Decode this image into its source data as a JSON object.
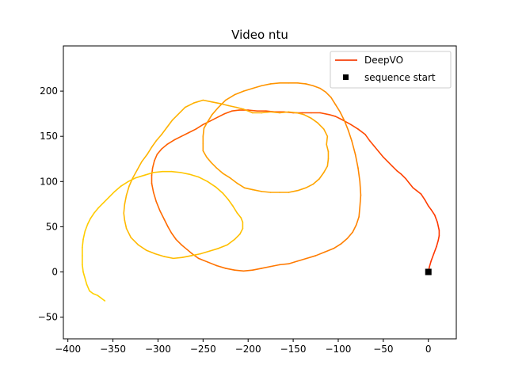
{
  "chart_data": {
    "type": "line",
    "title": "Video ntu",
    "xlabel": "",
    "ylabel": "",
    "xlim": [
      -405,
      31
    ],
    "ylim": [
      -74,
      250
    ],
    "xticks": [
      -400,
      -350,
      -300,
      -250,
      -200,
      -150,
      -100,
      -50,
      0
    ],
    "yticks": [
      -50,
      0,
      50,
      100,
      150,
      200
    ],
    "grid": false,
    "legend": {
      "position": "top-right",
      "entries": [
        "DeepVO",
        "sequence start"
      ]
    },
    "colors": {
      "path_start": "#ff3200",
      "path_mid": "#ff9b00",
      "path_end": "#ffd200",
      "legend_line": "#f4400b",
      "marker": "#000000"
    },
    "series": [
      {
        "name": "DeepVO",
        "points": [
          [
            0,
            0
          ],
          [
            1,
            5
          ],
          [
            3,
            12
          ],
          [
            6,
            20
          ],
          [
            9,
            28
          ],
          [
            11,
            35
          ],
          [
            12,
            40
          ],
          [
            12,
            46
          ],
          [
            10,
            55
          ],
          [
            7,
            63
          ],
          [
            3,
            69
          ],
          [
            0,
            73
          ],
          [
            -4,
            80
          ],
          [
            -8,
            86
          ],
          [
            -13,
            90
          ],
          [
            -17,
            93
          ],
          [
            -21,
            98
          ],
          [
            -25,
            103
          ],
          [
            -30,
            108
          ],
          [
            -35,
            112
          ],
          [
            -40,
            117
          ],
          [
            -45,
            122
          ],
          [
            -50,
            127
          ],
          [
            -55,
            133
          ],
          [
            -60,
            139
          ],
          [
            -65,
            145
          ],
          [
            -70,
            152
          ],
          [
            -78,
            158
          ],
          [
            -86,
            163
          ],
          [
            -95,
            168
          ],
          [
            -103,
            172
          ],
          [
            -110,
            174
          ],
          [
            -120,
            176
          ],
          [
            -130,
            176
          ],
          [
            -140,
            176
          ],
          [
            -150,
            176
          ],
          [
            -160,
            177
          ],
          [
            -170,
            177
          ],
          [
            -180,
            178
          ],
          [
            -190,
            178
          ],
          [
            -200,
            179
          ],
          [
            -210,
            179
          ],
          [
            -218,
            178
          ],
          [
            -226,
            175
          ],
          [
            -234,
            171
          ],
          [
            -242,
            167
          ],
          [
            -250,
            163
          ],
          [
            -258,
            158
          ],
          [
            -266,
            154
          ],
          [
            -274,
            150
          ],
          [
            -282,
            146
          ],
          [
            -290,
            141
          ],
          [
            -296,
            136
          ],
          [
            -301,
            130
          ],
          [
            -304,
            123
          ],
          [
            -306,
            115
          ],
          [
            -307,
            107
          ],
          [
            -307,
            98
          ],
          [
            -305,
            88
          ],
          [
            -302,
            78
          ],
          [
            -298,
            68
          ],
          [
            -293,
            58
          ],
          [
            -289,
            50
          ],
          [
            -285,
            43
          ],
          [
            -280,
            36
          ],
          [
            -274,
            30
          ],
          [
            -268,
            25
          ],
          [
            -262,
            20
          ],
          [
            -255,
            15
          ],
          [
            -245,
            11
          ],
          [
            -235,
            7
          ],
          [
            -225,
            4
          ],
          [
            -215,
            2
          ],
          [
            -205,
            1
          ],
          [
            -195,
            2
          ],
          [
            -185,
            4
          ],
          [
            -175,
            6
          ],
          [
            -165,
            8
          ],
          [
            -155,
            9
          ],
          [
            -145,
            12
          ],
          [
            -135,
            15
          ],
          [
            -125,
            18
          ],
          [
            -115,
            22
          ],
          [
            -105,
            26
          ],
          [
            -97,
            31
          ],
          [
            -90,
            37
          ],
          [
            -84,
            44
          ],
          [
            -80,
            52
          ],
          [
            -77,
            61
          ],
          [
            -76,
            72
          ],
          [
            -75,
            85
          ],
          [
            -76,
            100
          ],
          [
            -78,
            115
          ],
          [
            -81,
            130
          ],
          [
            -85,
            145
          ],
          [
            -89,
            157
          ],
          [
            -93,
            167
          ],
          [
            -98,
            177
          ],
          [
            -103,
            185
          ],
          [
            -108,
            193
          ],
          [
            -114,
            199
          ],
          [
            -120,
            203
          ],
          [
            -128,
            206
          ],
          [
            -136,
            208
          ],
          [
            -145,
            209
          ],
          [
            -155,
            209
          ],
          [
            -165,
            209
          ],
          [
            -175,
            208
          ],
          [
            -185,
            206
          ],
          [
            -195,
            203
          ],
          [
            -205,
            200
          ],
          [
            -215,
            196
          ],
          [
            -225,
            190
          ],
          [
            -233,
            182
          ],
          [
            -240,
            174
          ],
          [
            -245,
            166
          ],
          [
            -249,
            159
          ],
          [
            -250,
            150
          ],
          [
            -250,
            142
          ],
          [
            -250,
            134
          ],
          [
            -246,
            127
          ],
          [
            -241,
            121
          ],
          [
            -235,
            115
          ],
          [
            -228,
            109
          ],
          [
            -220,
            104
          ],
          [
            -212,
            98
          ],
          [
            -204,
            93
          ],
          [
            -195,
            91
          ],
          [
            -185,
            89
          ],
          [
            -175,
            88
          ],
          [
            -165,
            88
          ],
          [
            -155,
            88
          ],
          [
            -145,
            90
          ],
          [
            -136,
            93
          ],
          [
            -128,
            97
          ],
          [
            -121,
            103
          ],
          [
            -116,
            110
          ],
          [
            -112,
            117
          ],
          [
            -111,
            125
          ],
          [
            -111,
            133
          ],
          [
            -113,
            141
          ],
          [
            -112,
            150
          ],
          [
            -116,
            158
          ],
          [
            -123,
            165
          ],
          [
            -130,
            170
          ],
          [
            -138,
            174
          ],
          [
            -146,
            176
          ],
          [
            -155,
            177
          ],
          [
            -165,
            176
          ],
          [
            -175,
            177
          ],
          [
            -185,
            176
          ],
          [
            -195,
            176
          ],
          [
            -205,
            180
          ],
          [
            -213,
            182
          ],
          [
            -222,
            184
          ],
          [
            -230,
            186
          ],
          [
            -240,
            188
          ],
          [
            -250,
            190
          ],
          [
            -260,
            187
          ],
          [
            -270,
            182
          ],
          [
            -278,
            174
          ],
          [
            -284,
            168
          ],
          [
            -290,
            160
          ],
          [
            -296,
            152
          ],
          [
            -302,
            145
          ],
          [
            -307,
            138
          ],
          [
            -312,
            130
          ],
          [
            -318,
            122
          ],
          [
            -323,
            113
          ],
          [
            -328,
            104
          ],
          [
            -332,
            95
          ],
          [
            -335,
            85
          ],
          [
            -337,
            75
          ],
          [
            -338,
            65
          ],
          [
            -337,
            57
          ],
          [
            -335,
            48
          ],
          [
            -330,
            38
          ],
          [
            -322,
            30
          ],
          [
            -313,
            24
          ],
          [
            -303,
            20
          ],
          [
            -293,
            17
          ],
          [
            -283,
            15
          ],
          [
            -273,
            16
          ],
          [
            -263,
            18
          ],
          [
            -253,
            20
          ],
          [
            -243,
            23
          ],
          [
            -233,
            26
          ],
          [
            -223,
            30
          ],
          [
            -215,
            36
          ],
          [
            -209,
            42
          ],
          [
            -206,
            48
          ],
          [
            -206,
            55
          ],
          [
            -208,
            60
          ],
          [
            -212,
            65
          ],
          [
            -217,
            73
          ],
          [
            -222,
            80
          ],
          [
            -228,
            87
          ],
          [
            -236,
            94
          ],
          [
            -245,
            100
          ],
          [
            -255,
            105
          ],
          [
            -265,
            108
          ],
          [
            -275,
            110
          ],
          [
            -285,
            111
          ],
          [
            -295,
            111
          ],
          [
            -305,
            110
          ],
          [
            -315,
            107
          ],
          [
            -325,
            104
          ],
          [
            -333,
            100
          ],
          [
            -341,
            95
          ],
          [
            -348,
            89
          ],
          [
            -354,
            83
          ],
          [
            -360,
            77
          ],
          [
            -366,
            71
          ],
          [
            -371,
            65
          ],
          [
            -375,
            59
          ],
          [
            -378,
            53
          ],
          [
            -381,
            45
          ],
          [
            -383,
            36
          ],
          [
            -384,
            27
          ],
          [
            -384,
            18
          ],
          [
            -384,
            8
          ],
          [
            -383,
            0
          ],
          [
            -381,
            -7
          ],
          [
            -379,
            -14
          ],
          [
            -376,
            -21
          ],
          [
            -372,
            -24
          ],
          [
            -367,
            -26
          ],
          [
            -363,
            -29
          ],
          [
            -359,
            -32
          ]
        ]
      },
      {
        "name": "sequence start",
        "points": [
          [
            0,
            0
          ]
        ]
      }
    ]
  }
}
